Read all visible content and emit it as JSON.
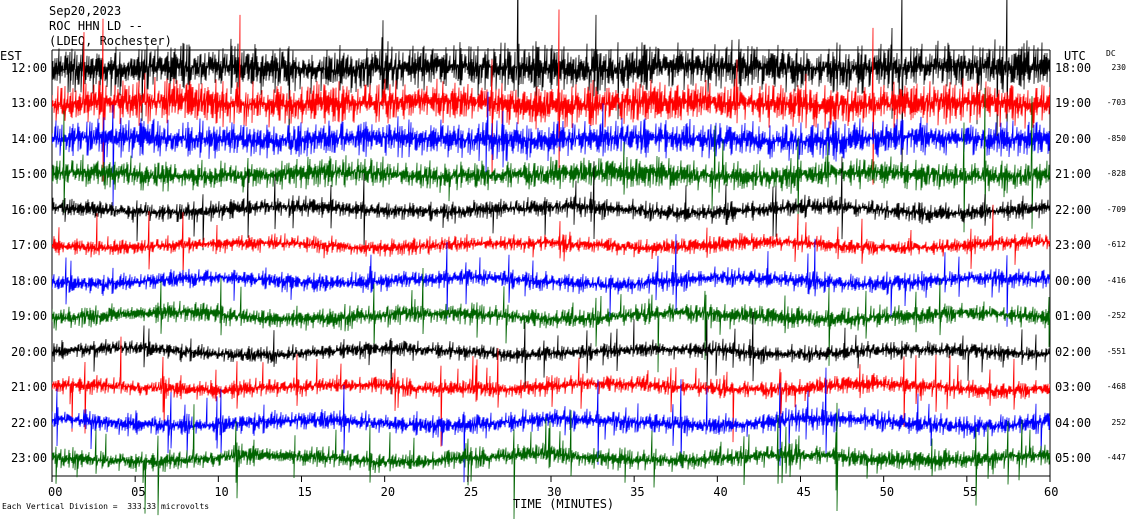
{
  "header": {
    "date": "Sep20,2023",
    "station": "ROC HHN LD --",
    "network": "(LDEO, Rochester)"
  },
  "chart_data": {
    "type": "line",
    "title": "",
    "xlabel": "TIME (MINUTES)",
    "xlim": [
      0,
      60
    ],
    "x_ticks": [
      "00",
      "05",
      "10",
      "15",
      "20",
      "25",
      "30",
      "35",
      "40",
      "45",
      "50",
      "55",
      "60"
    ],
    "left_axis_label": "EST",
    "right_axis_label": "UTC",
    "dc_label": "DC",
    "traces": [
      {
        "est": "12:00",
        "utc": "18:00",
        "dc": "230",
        "color": "#000000"
      },
      {
        "est": "13:00",
        "utc": "19:00",
        "dc": "-703",
        "color": "#ff0000"
      },
      {
        "est": "14:00",
        "utc": "20:00",
        "dc": "-850",
        "color": "#0000ff"
      },
      {
        "est": "15:00",
        "utc": "21:00",
        "dc": "-828",
        "color": "#006400"
      },
      {
        "est": "16:00",
        "utc": "22:00",
        "dc": "-709",
        "color": "#000000"
      },
      {
        "est": "17:00",
        "utc": "23:00",
        "dc": "-612",
        "color": "#ff0000"
      },
      {
        "est": "18:00",
        "utc": "00:00",
        "dc": "-416",
        "color": "#0000ff"
      },
      {
        "est": "19:00",
        "utc": "01:00",
        "dc": "-252",
        "color": "#006400"
      },
      {
        "est": "20:00",
        "utc": "02:00",
        "dc": "-551",
        "color": "#000000"
      },
      {
        "est": "21:00",
        "utc": "03:00",
        "dc": "-468",
        "color": "#ff0000"
      },
      {
        "est": "22:00",
        "utc": "04:00",
        "dc": "252",
        "color": "#0000ff"
      },
      {
        "est": "23:00",
        "utc": "05:00",
        "dc": "-447",
        "color": "#006400"
      }
    ],
    "footnote": "Each Vertical Division =  333.33 microvolts"
  }
}
